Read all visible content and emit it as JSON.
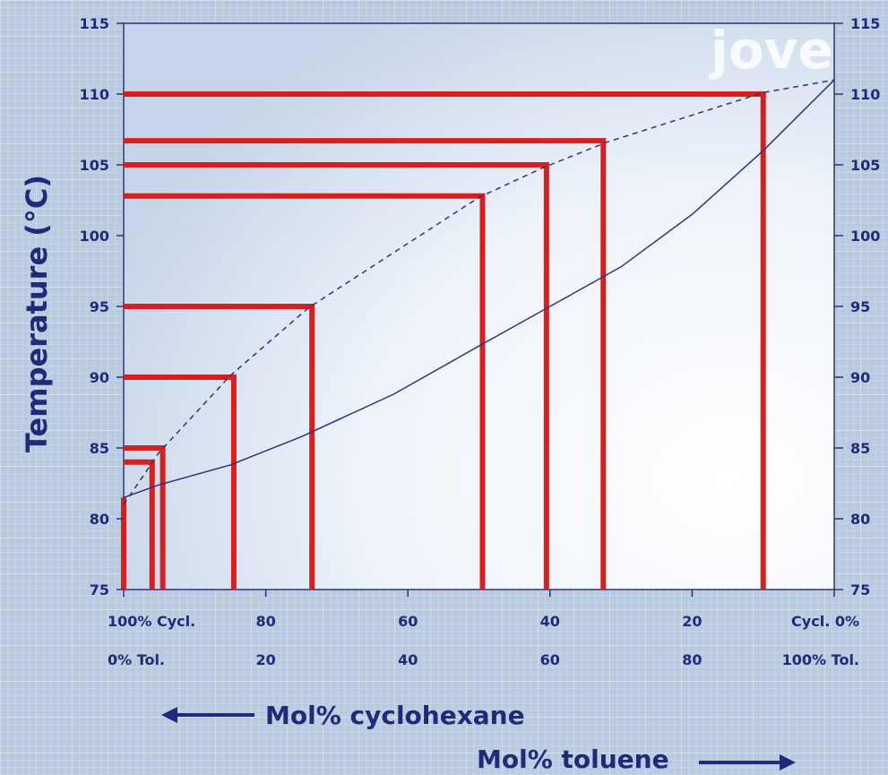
{
  "chart_data": {
    "type": "line",
    "ylabel": "Temperature (°C)",
    "ylim": [
      75,
      115
    ],
    "y_ticks": [
      75,
      80,
      85,
      90,
      95,
      100,
      105,
      110,
      115
    ],
    "right_y_ticks": [
      "75",
      "80",
      "85",
      "90",
      "95",
      "100",
      "105",
      "110",
      "115"
    ],
    "xlim": [
      100,
      0
    ],
    "x_ticks": [
      {
        "value": 100,
        "top": "100% Cycl.",
        "bottom": "0% Tol."
      },
      {
        "value": 80,
        "top": "80",
        "bottom": "20"
      },
      {
        "value": 60,
        "top": "60",
        "bottom": "40"
      },
      {
        "value": 40,
        "top": "40",
        "bottom": "60"
      },
      {
        "value": 20,
        "top": "20",
        "bottom": "80"
      },
      {
        "value": 0,
        "top": "Cycl.   0%",
        "bottom": "100% Tol."
      }
    ],
    "xlabel_cyclohexane": "Mol% cyclohexane",
    "xlabel_toluene": "Mol% toluene",
    "series": [
      {
        "style": "solid",
        "color": "#2b357a",
        "points": [
          [
            100,
            81.5
          ],
          [
            95,
            82.4
          ],
          [
            85,
            83.8
          ],
          [
            75,
            85.8
          ],
          [
            62,
            88.8
          ],
          [
            50,
            92.2
          ],
          [
            40,
            95.0
          ],
          [
            30,
            97.8
          ],
          [
            20,
            101.5
          ],
          [
            10,
            106.0
          ],
          [
            0,
            111.0
          ]
        ]
      },
      {
        "style": "dashed",
        "color": "#2b357a",
        "points": [
          [
            100,
            81.0
          ],
          [
            95,
            84.7
          ],
          [
            85,
            90.1
          ],
          [
            74,
            94.9
          ],
          [
            50,
            102.7
          ],
          [
            41,
            104.8
          ],
          [
            32,
            106.6
          ],
          [
            10,
            110.1
          ],
          [
            0,
            111.0
          ]
        ]
      }
    ],
    "steps": [
      {
        "x": 100,
        "y": 81.5
      },
      {
        "x": 96.0,
        "y": 84.0
      },
      {
        "x": 94.5,
        "y": 85.0
      },
      {
        "x": 84.5,
        "y": 90.0
      },
      {
        "x": 73.5,
        "y": 95.0
      },
      {
        "x": 49.5,
        "y": 102.8
      },
      {
        "x": 40.5,
        "y": 105.0
      },
      {
        "x": 32.5,
        "y": 106.7
      },
      {
        "x": 10.0,
        "y": 110.0
      }
    ],
    "step_color": "#d61f1f"
  },
  "watermark": {
    "text": "jove"
  }
}
